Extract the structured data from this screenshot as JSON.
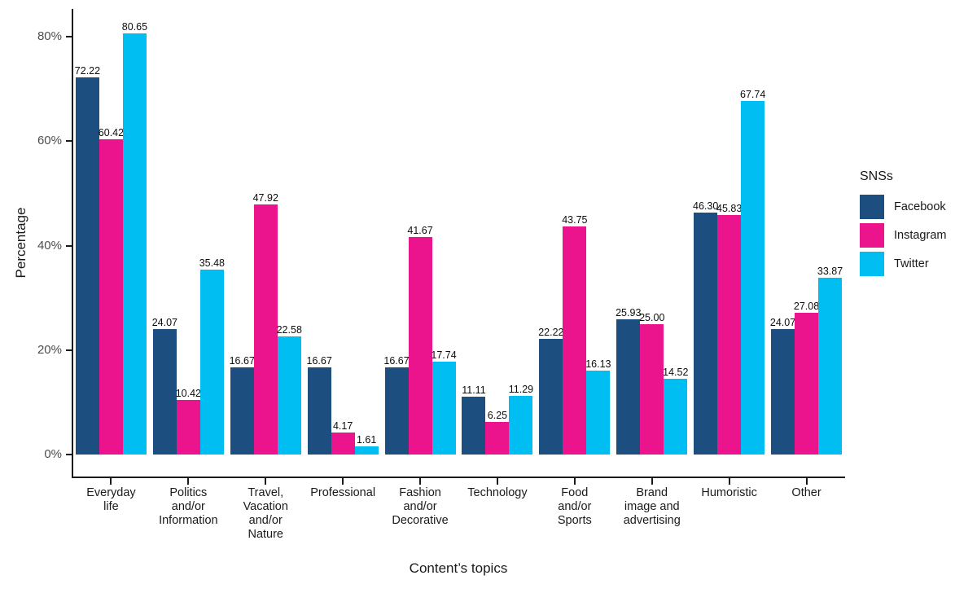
{
  "chart_data": {
    "type": "bar",
    "title": "",
    "xlabel": "Content’s topics",
    "ylabel": "Percentage",
    "legend_title": "SNSs",
    "legend_position": "right",
    "grid": false,
    "background": "#ffffff",
    "ylim": [
      -4.2,
      85.6
    ],
    "y_tick_values": [
      0,
      20,
      40,
      60,
      80
    ],
    "y_tick_labels": [
      "0%",
      "20%",
      "40%",
      "60%",
      "80%"
    ],
    "value_labels_shown": true,
    "value_label_decimals": 2,
    "categories": [
      "Everyday\nlife",
      "Politics\nand/or\nInformation",
      "Travel,\nVacation\nand/or\nNature",
      "Professional",
      "Fashion\nand/or\nDecorative",
      "Technology",
      "Food\nand/or\nSports",
      "Brand\nimage and\nadvertising",
      "Humoristic",
      "Other"
    ],
    "series": [
      {
        "name": "Facebook",
        "color": "#1C4E80",
        "values": [
          72.22,
          24.07,
          16.67,
          16.67,
          16.67,
          11.11,
          22.22,
          25.93,
          46.3,
          24.07
        ]
      },
      {
        "name": "Instagram",
        "color": "#EC148D",
        "values": [
          60.42,
          10.42,
          47.92,
          4.17,
          41.67,
          6.25,
          43.75,
          25.0,
          45.83,
          27.08
        ]
      },
      {
        "name": "Twitter",
        "color": "#00BDF2",
        "values": [
          80.65,
          35.48,
          22.58,
          1.61,
          17.74,
          11.29,
          16.13,
          14.52,
          67.74,
          33.87
        ]
      }
    ]
  }
}
